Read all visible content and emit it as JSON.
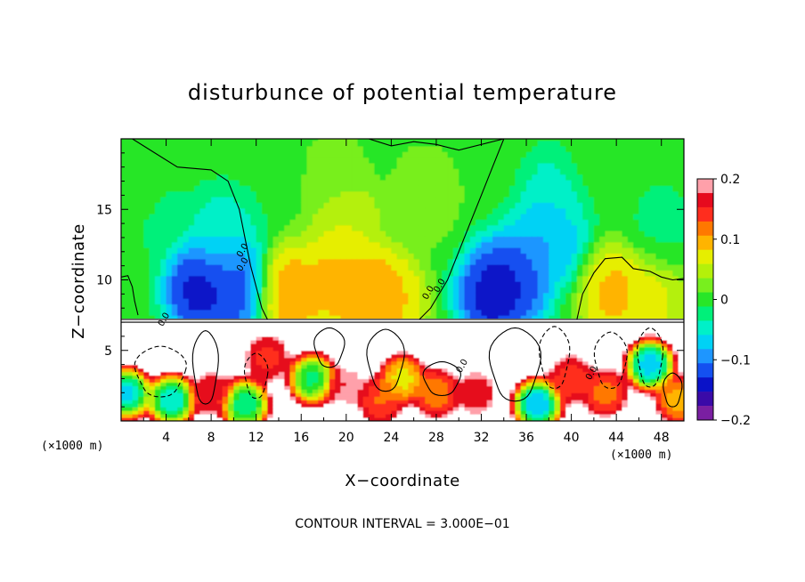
{
  "chart_data": {
    "type": "heatmap",
    "title": "disturbunce of potential temperature",
    "xlabel": "X−coordinate",
    "ylabel": "Z−coordinate",
    "x_unit": "(×1000 m)",
    "xlim": [
      0,
      50
    ],
    "ylim": [
      0,
      20
    ],
    "x_ticks": [
      4,
      8,
      12,
      16,
      20,
      24,
      28,
      32,
      36,
      40,
      44,
      48
    ],
    "x_tick_labels": [
      "4",
      "8",
      "12",
      "16",
      "20",
      "24",
      "28",
      "32",
      "36",
      "40",
      "44",
      "48"
    ],
    "y_ticks": [
      5,
      10,
      15
    ],
    "y_tick_labels": [
      "5",
      "10",
      "15"
    ],
    "colorbar": {
      "range": [
        -0.2,
        0.2
      ],
      "tick_values": [
        0.2,
        0.1,
        0,
        -0.1,
        -0.2
      ],
      "tick_labels": [
        "0.2",
        "0.1",
        "0",
        "−0.1",
        "−0.2"
      ]
    },
    "contour_label": "0.0",
    "footnote": "CONTOUR INTERVAL = 3.000E−01",
    "interface_height": 7.1,
    "upper_field": [
      {
        "x": 1,
        "z": 17,
        "v": 0.01
      },
      {
        "x": 3,
        "z": 15,
        "v": -0.02
      },
      {
        "x": 7,
        "z": 9.5,
        "v": -0.17
      },
      {
        "x": 10,
        "z": 9.5,
        "v": -0.15
      },
      {
        "x": 9,
        "z": 13,
        "v": -0.06
      },
      {
        "x": 15,
        "z": 9,
        "v": 0.12
      },
      {
        "x": 19,
        "z": 10,
        "v": 0.11
      },
      {
        "x": 22,
        "z": 9,
        "v": 0.13
      },
      {
        "x": 24,
        "z": 8.5,
        "v": 0.1
      },
      {
        "x": 20,
        "z": 14,
        "v": 0.07
      },
      {
        "x": 19,
        "z": 18,
        "v": 0.02
      },
      {
        "x": 27,
        "z": 16,
        "v": 0.03
      },
      {
        "x": 33,
        "z": 9,
        "v": -0.17
      },
      {
        "x": 35,
        "z": 10,
        "v": -0.15
      },
      {
        "x": 38,
        "z": 13,
        "v": -0.1
      },
      {
        "x": 39,
        "z": 16,
        "v": -0.06
      },
      {
        "x": 44,
        "z": 9,
        "v": 0.11
      },
      {
        "x": 47,
        "z": 8.5,
        "v": 0.08
      },
      {
        "x": 42,
        "z": 18,
        "v": 0.01
      },
      {
        "x": 48,
        "z": 14,
        "v": -0.02
      }
    ],
    "lower_field": [
      {
        "x": 0.5,
        "z": 2,
        "v": -0.12
      },
      {
        "x": 4.5,
        "z": 1.5,
        "v": -0.11
      },
      {
        "x": 8,
        "z": 2,
        "v": 0.16
      },
      {
        "x": 11,
        "z": 1.2,
        "v": -0.08
      },
      {
        "x": 13,
        "z": 4.5,
        "v": 0.14
      },
      {
        "x": 17,
        "z": 3,
        "v": -0.06
      },
      {
        "x": 20,
        "z": 2.5,
        "v": 0.18
      },
      {
        "x": 23,
        "z": 1.5,
        "v": 0.12
      },
      {
        "x": 25,
        "z": 3,
        "v": 0.05
      },
      {
        "x": 28,
        "z": 2,
        "v": 0.1
      },
      {
        "x": 31.5,
        "z": 2,
        "v": 0.16
      },
      {
        "x": 37,
        "z": 1.2,
        "v": -0.14
      },
      {
        "x": 40,
        "z": 3,
        "v": 0.13
      },
      {
        "x": 43,
        "z": 2,
        "v": 0.11
      },
      {
        "x": 47,
        "z": 4,
        "v": -0.13
      },
      {
        "x": 49.5,
        "z": 1.5,
        "v": 0.08
      }
    ],
    "palette": [
      {
        "v": -0.2,
        "color": "#7a1fa2"
      },
      {
        "v": -0.175,
        "color": "#3a0aa8"
      },
      {
        "v": -0.15,
        "color": "#0a12c8"
      },
      {
        "v": -0.125,
        "color": "#1450f0"
      },
      {
        "v": -0.1,
        "color": "#1e96ff"
      },
      {
        "v": -0.075,
        "color": "#00d2f5"
      },
      {
        "v": -0.05,
        "color": "#00f0c8"
      },
      {
        "v": -0.025,
        "color": "#00f07a"
      },
      {
        "v": 0,
        "color": "#28e628"
      },
      {
        "v": 0.025,
        "color": "#78ef1e"
      },
      {
        "v": 0.05,
        "color": "#b4f00a"
      },
      {
        "v": 0.075,
        "color": "#e6ee00"
      },
      {
        "v": 0.1,
        "color": "#ffb400"
      },
      {
        "v": 0.125,
        "color": "#ff7800"
      },
      {
        "v": 0.15,
        "color": "#ff2d1e"
      },
      {
        "v": 0.175,
        "color": "#e60a1e"
      },
      {
        "v": 0.2,
        "color": "#ffa0aa"
      }
    ],
    "grid": false,
    "legend": "colorbar-right"
  }
}
